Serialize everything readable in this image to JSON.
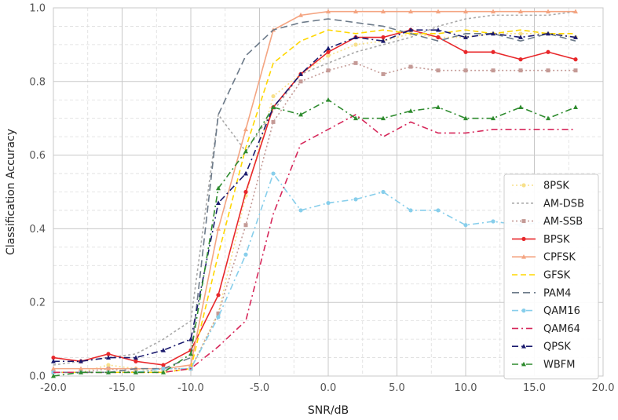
{
  "chart_data": {
    "type": "line",
    "title": "",
    "xlabel": "SNR/dB",
    "ylabel": "Classification Accuracy",
    "xlim": [
      -20,
      20
    ],
    "ylim": [
      0,
      1
    ],
    "x_ticks": [
      -20,
      -15,
      -10,
      -5,
      0,
      5,
      10,
      15,
      20
    ],
    "x_tick_labels": [
      "-20.0",
      "-15.0",
      "-10.0",
      "-5.0",
      "0.0",
      "5.0",
      "10.0",
      "15.0",
      "20.0"
    ],
    "y_ticks": [
      0,
      0.2,
      0.4,
      0.6,
      0.8,
      1.0
    ],
    "y_tick_labels": [
      "0.0",
      "0.2",
      "0.4",
      "0.6",
      "0.8",
      "1.0"
    ],
    "grid": true,
    "legend_position": "lower-right",
    "x": [
      -20,
      -18,
      -16,
      -14,
      -12,
      -10,
      -8,
      -6,
      -4,
      -2,
      0,
      2,
      4,
      6,
      8,
      10,
      12,
      14,
      16,
      18
    ],
    "series": [
      {
        "name": "8PSK",
        "color": "#f7e08a",
        "dash": "2,3",
        "marker": "dot",
        "values": [
          0.01,
          0.01,
          0.03,
          0.02,
          0.01,
          0.02,
          0.17,
          0.49,
          0.76,
          0.82,
          0.87,
          0.9,
          0.91,
          0.93,
          0.92,
          0.92,
          0.93,
          0.93,
          0.93,
          0.92
        ]
      },
      {
        "name": "AM-DSB",
        "color": "#a9a9a9",
        "dash": "3,3",
        "marker": "none",
        "values": [
          0.03,
          0.04,
          0.05,
          0.06,
          0.1,
          0.15,
          0.71,
          0.61,
          0.72,
          0.82,
          0.85,
          0.88,
          0.9,
          0.92,
          0.95,
          0.97,
          0.98,
          0.98,
          0.98,
          0.99
        ]
      },
      {
        "name": "AM-SSB",
        "color": "#c49a96",
        "dash": "2,3",
        "marker": "square",
        "values": [
          0.01,
          0.01,
          0.02,
          0.01,
          0.02,
          0.02,
          0.17,
          0.41,
          0.69,
          0.8,
          0.83,
          0.85,
          0.82,
          0.84,
          0.83,
          0.83,
          0.83,
          0.83,
          0.83,
          0.83
        ]
      },
      {
        "name": "BPSK",
        "color": "#e8272a",
        "dash": "",
        "marker": "dot",
        "values": [
          0.05,
          0.04,
          0.06,
          0.04,
          0.03,
          0.07,
          0.22,
          0.5,
          0.73,
          0.82,
          0.88,
          0.92,
          0.92,
          0.94,
          0.92,
          0.88,
          0.88,
          0.86,
          0.88,
          0.86
        ]
      },
      {
        "name": "CPFSK",
        "color": "#f4a582",
        "dash": "",
        "marker": "triangle",
        "values": [
          0.02,
          0.02,
          0.02,
          0.02,
          0.02,
          0.03,
          0.4,
          0.67,
          0.94,
          0.98,
          0.99,
          0.99,
          0.99,
          0.99,
          0.99,
          0.99,
          0.99,
          0.99,
          0.99,
          0.99
        ]
      },
      {
        "name": "GFSK",
        "color": "#ffd700",
        "dash": "7,4",
        "marker": "none",
        "values": [
          0.01,
          0.01,
          0.01,
          0.01,
          0.01,
          0.02,
          0.33,
          0.62,
          0.85,
          0.91,
          0.94,
          0.93,
          0.94,
          0.93,
          0.93,
          0.94,
          0.93,
          0.94,
          0.93,
          0.93
        ]
      },
      {
        "name": "PAM4",
        "color": "#6c7a89",
        "dash": "9,5",
        "marker": "none",
        "values": [
          0.01,
          0.01,
          0.01,
          0.02,
          0.02,
          0.05,
          0.71,
          0.87,
          0.94,
          0.96,
          0.97,
          0.96,
          0.95,
          0.93,
          0.91,
          0.93,
          0.93,
          0.91,
          0.93,
          0.91
        ]
      },
      {
        "name": "QAM16",
        "color": "#87ceeb",
        "dash": "8,4,2,4",
        "marker": "dot",
        "values": [
          0.01,
          0.01,
          0.01,
          0.01,
          0.02,
          0.02,
          0.16,
          0.33,
          0.55,
          0.45,
          0.47,
          0.48,
          0.5,
          0.45,
          0.45,
          0.41,
          0.42,
          0.41,
          0.42,
          0.41
        ]
      },
      {
        "name": "QAM64",
        "color": "#d6275a",
        "dash": "8,4,2,4",
        "marker": "none",
        "values": [
          0.01,
          0.01,
          0.01,
          0.01,
          0.01,
          0.02,
          0.08,
          0.15,
          0.44,
          0.63,
          0.67,
          0.71,
          0.65,
          0.69,
          0.66,
          0.66,
          0.67,
          0.67,
          0.67,
          0.67
        ]
      },
      {
        "name": "QPSK",
        "color": "#1a1a6e",
        "dash": "8,4,2,4",
        "marker": "triangle",
        "values": [
          0.04,
          0.04,
          0.05,
          0.05,
          0.07,
          0.1,
          0.47,
          0.55,
          0.73,
          0.82,
          0.89,
          0.92,
          0.91,
          0.94,
          0.94,
          0.92,
          0.93,
          0.92,
          0.93,
          0.92
        ]
      },
      {
        "name": "WBFM",
        "color": "#2e8b2e",
        "dash": "8,4,2,4",
        "marker": "triangle",
        "values": [
          0.0,
          0.01,
          0.01,
          0.01,
          0.01,
          0.06,
          0.51,
          0.61,
          0.73,
          0.71,
          0.75,
          0.7,
          0.7,
          0.72,
          0.73,
          0.7,
          0.7,
          0.73,
          0.7,
          0.73
        ]
      }
    ]
  }
}
